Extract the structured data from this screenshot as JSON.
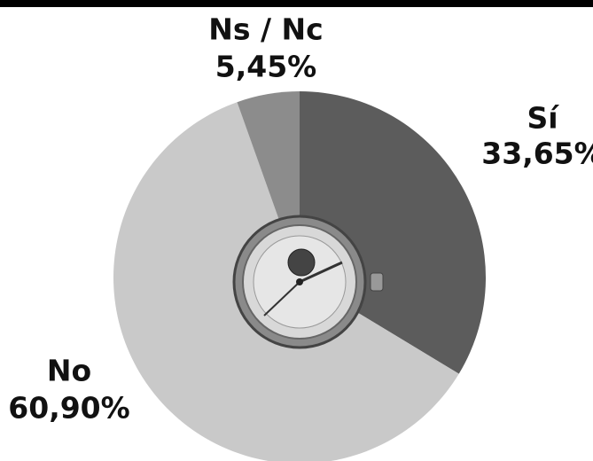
{
  "chart_data": {
    "type": "pie",
    "categories": [
      "Sí",
      "No",
      "Ns / Nc"
    ],
    "values": [
      33.65,
      60.9,
      5.45
    ],
    "value_labels": [
      "33,65%",
      "60,90%",
      "5,45%"
    ],
    "colors": [
      "#5c5c5c",
      "#c9c9c9",
      "#8c8c8c"
    ]
  }
}
